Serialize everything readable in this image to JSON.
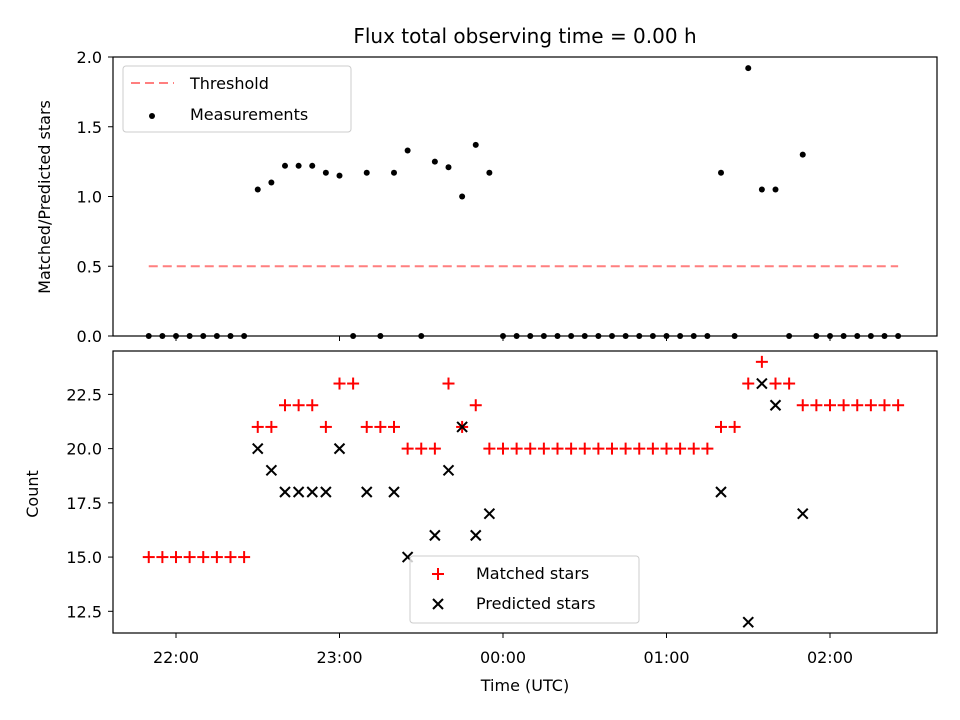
{
  "chart_data": [
    {
      "type": "scatter",
      "title": "Flux total observing time = 0.00 h",
      "xlabel": "",
      "ylabel": "Matched/Predicted stars",
      "ylim": [
        0,
        2.0
      ],
      "yticks": [
        "0.0",
        "0.5",
        "1.0",
        "1.5",
        "2.0"
      ],
      "legend": {
        "placement": "top-left",
        "entries": [
          "Threshold",
          "Measurements"
        ]
      },
      "threshold": {
        "name": "Threshold",
        "value": 0.5,
        "x_start": "21:50",
        "x_end": "02:25",
        "color": "#ff7f7f"
      },
      "series": [
        {
          "name": "Measurements",
          "color": "#000000",
          "x": [
            "21:50",
            "21:55",
            "22:00",
            "22:05",
            "22:10",
            "22:15",
            "22:20",
            "22:25",
            "22:30",
            "22:35",
            "22:40",
            "22:45",
            "22:50",
            "22:55",
            "23:00",
            "23:05",
            "23:10",
            "23:15",
            "23:20",
            "23:25",
            "23:30",
            "23:35",
            "23:40",
            "23:45",
            "23:50",
            "23:55",
            "00:00",
            "00:05",
            "00:10",
            "00:15",
            "00:20",
            "00:25",
            "00:30",
            "00:35",
            "00:40",
            "00:45",
            "00:50",
            "00:55",
            "01:00",
            "01:05",
            "01:10",
            "01:15",
            "01:20",
            "01:25",
            "01:30",
            "01:35",
            "01:40",
            "01:45",
            "01:50",
            "01:55",
            "02:00",
            "02:05",
            "02:10",
            "02:15",
            "02:20",
            "02:25"
          ],
          "y": [
            0,
            0,
            0,
            0,
            0,
            0,
            0,
            0,
            1.05,
            1.1,
            1.22,
            1.22,
            1.22,
            1.17,
            1.15,
            0,
            1.17,
            0,
            1.17,
            1.33,
            0,
            1.25,
            1.21,
            1.0,
            1.37,
            1.17,
            0,
            0,
            0,
            0,
            0,
            0,
            0,
            0,
            0,
            0,
            0,
            0,
            0,
            0,
            0,
            0,
            1.17,
            0,
            1.92,
            1.05,
            1.05,
            0,
            1.3,
            0,
            0,
            0,
            0,
            0,
            0,
            0
          ]
        }
      ]
    },
    {
      "type": "scatter",
      "title": "",
      "xlabel": "Time (UTC)",
      "ylabel": "Count",
      "ylim": [
        11.5,
        24.5
      ],
      "yticks": [
        "12.5",
        "15.0",
        "17.5",
        "20.0",
        "22.5"
      ],
      "xticks": [
        "22:00",
        "23:00",
        "00:00",
        "01:00",
        "02:00"
      ],
      "legend": {
        "placement": "lower-center",
        "entries": [
          "Matched stars",
          "Predicted stars"
        ]
      },
      "series": [
        {
          "name": "Matched stars",
          "marker": "+",
          "color": "#ff0000",
          "x": [
            "21:50",
            "21:55",
            "22:00",
            "22:05",
            "22:10",
            "22:15",
            "22:20",
            "22:25",
            "22:30",
            "22:35",
            "22:40",
            "22:45",
            "22:50",
            "22:55",
            "23:00",
            "23:05",
            "23:10",
            "23:15",
            "23:20",
            "23:25",
            "23:30",
            "23:35",
            "23:40",
            "23:45",
            "23:50",
            "23:55",
            "00:00",
            "00:05",
            "00:10",
            "00:15",
            "00:20",
            "00:25",
            "00:30",
            "00:35",
            "00:40",
            "00:45",
            "00:50",
            "00:55",
            "01:00",
            "01:05",
            "01:10",
            "01:15",
            "01:20",
            "01:25",
            "01:30",
            "01:35",
            "01:40",
            "01:45",
            "01:50",
            "01:55",
            "02:00",
            "02:05",
            "02:10",
            "02:15",
            "02:20",
            "02:25"
          ],
          "y": [
            15,
            15,
            15,
            15,
            15,
            15,
            15,
            15,
            21,
            21,
            22,
            22,
            22,
            21,
            23,
            23,
            21,
            21,
            21,
            20,
            20,
            20,
            23,
            21,
            22,
            20,
            20,
            20,
            20,
            20,
            20,
            20,
            20,
            20,
            20,
            20,
            20,
            20,
            20,
            20,
            20,
            20,
            21,
            21,
            23,
            24,
            23,
            23,
            22,
            22,
            22,
            22,
            22,
            22,
            22,
            22
          ]
        },
        {
          "name": "Predicted stars",
          "marker": "x",
          "color": "#000000",
          "x": [
            "22:30",
            "22:35",
            "22:40",
            "22:45",
            "22:50",
            "22:55",
            "23:00",
            "23:10",
            "23:20",
            "23:25",
            "23:35",
            "23:40",
            "23:45",
            "23:50",
            "23:55",
            "01:20",
            "01:30",
            "01:35",
            "01:40",
            "01:50"
          ],
          "y": [
            20,
            19,
            18,
            18,
            18,
            18,
            20,
            18,
            18,
            15,
            16,
            19,
            21,
            16,
            17,
            18,
            12,
            23,
            22,
            17
          ]
        }
      ]
    }
  ]
}
